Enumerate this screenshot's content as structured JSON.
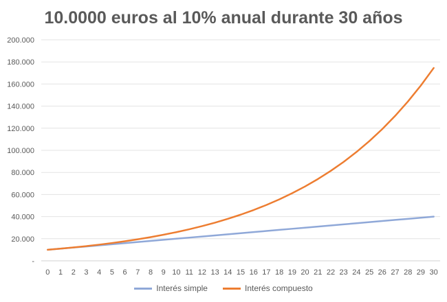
{
  "chart_data": {
    "type": "line",
    "title": "10.0000 euros  al 10% anual durante 30 años",
    "xlabel": "",
    "ylabel": "",
    "x": [
      0,
      1,
      2,
      3,
      4,
      5,
      6,
      7,
      8,
      9,
      10,
      11,
      12,
      13,
      14,
      15,
      16,
      17,
      18,
      19,
      20,
      21,
      22,
      23,
      24,
      25,
      26,
      27,
      28,
      29,
      30
    ],
    "ylim": [
      0,
      200000
    ],
    "y_ticks": [
      {
        "value": 0,
        "label": "-"
      },
      {
        "value": 20000,
        "label": "20.000"
      },
      {
        "value": 40000,
        "label": "40.000"
      },
      {
        "value": 60000,
        "label": "60.000"
      },
      {
        "value": 80000,
        "label": "80.000"
      },
      {
        "value": 100000,
        "label": "100.000"
      },
      {
        "value": 120000,
        "label": "120.000"
      },
      {
        "value": 140000,
        "label": "140.000"
      },
      {
        "value": 160000,
        "label": "160.000"
      },
      {
        "value": 180000,
        "label": "180.000"
      },
      {
        "value": 200000,
        "label": "200.000"
      }
    ],
    "grid": true,
    "legend_position": "bottom",
    "series": [
      {
        "name": "Interés simple",
        "color": "#8FA8D8",
        "values": [
          10000,
          11000,
          12000,
          13000,
          14000,
          15000,
          16000,
          17000,
          18000,
          19000,
          20000,
          21000,
          22000,
          23000,
          24000,
          25000,
          26000,
          27000,
          28000,
          29000,
          30000,
          31000,
          32000,
          33000,
          34000,
          35000,
          36000,
          37000,
          38000,
          39000,
          40000
        ]
      },
      {
        "name": "Interés compuesto",
        "color": "#ED7D31",
        "values": [
          10000,
          11000,
          12100,
          13310,
          14641,
          16105,
          17716,
          19487,
          21436,
          23579,
          25937,
          28531,
          31384,
          34523,
          37975,
          41772,
          45950,
          50545,
          55599,
          61159,
          67275,
          74002,
          81403,
          89543,
          98497,
          108347,
          119182,
          131100,
          144210,
          158631,
          174494
        ]
      }
    ]
  }
}
